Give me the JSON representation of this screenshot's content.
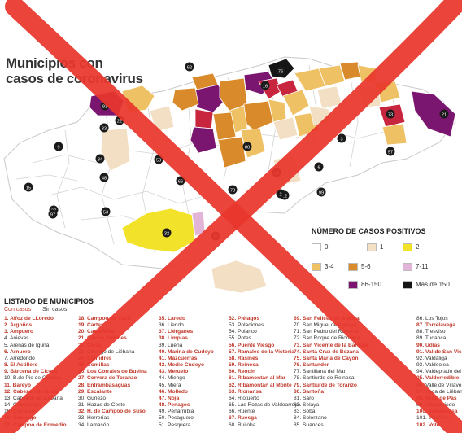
{
  "title_line1": "Municipios con",
  "title_line2": "casos de coronavirus",
  "legend": {
    "title": "NÚMERO DE CASOS POSITIVOS",
    "items": [
      {
        "label": "0",
        "color": "#ffffff"
      },
      {
        "label": "1",
        "color": "#f2dfc4"
      },
      {
        "label": "2",
        "color": "#f2e22a"
      },
      {
        "label": "3-4",
        "color": "#efc165"
      },
      {
        "label": "5-6",
        "color": "#d98a2b"
      },
      {
        "label": "7-11",
        "color": "#e2b4d8"
      },
      {
        "label": "86-150",
        "color": "#7b1670"
      },
      {
        "label": "Más de 150",
        "color": "#151515"
      }
    ]
  },
  "map": {
    "colors": {
      "base": "#ffffff",
      "one": "#f2dfc4",
      "two": "#f2e22a",
      "three": "#efc165",
      "five": "#d98a2b",
      "seven": "#e2b4d8",
      "twelve": "#c8263f",
      "eightysix": "#7b1670",
      "max": "#151515",
      "border": "#c9c9c9"
    },
    "labels": [
      "91",
      "33",
      "22",
      "76",
      "16",
      "21",
      "15",
      "9",
      "37",
      "62",
      "97",
      "64",
      "34",
      "48",
      "80",
      "53",
      "66",
      "99",
      "57",
      "12",
      "2",
      "58",
      "6",
      "3",
      "73",
      "32",
      "36",
      "78"
    ]
  },
  "list": {
    "title": "LISTADO DE MUNICIPIOS",
    "with_cases": "Con casos",
    "without_cases": "Sin casos",
    "columns": [
      [
        {
          "t": "1.  Alfoz de LLoredo",
          "p": true
        },
        {
          "t": "2.  Argoños",
          "p": true
        },
        {
          "t": "3.  Ampuero",
          "p": true
        },
        {
          "t": "4.  Anievas",
          "p": false
        },
        {
          "t": "5.  Arenas de Iguña",
          "p": false
        },
        {
          "t": "6.  Arnuero",
          "p": true
        },
        {
          "t": "7.  Arredondo",
          "p": false
        },
        {
          "t": "8.  El Astillero",
          "p": true
        },
        {
          "t": "9.  Bárcena de Cicero",
          "p": true
        },
        {
          "t": "10. B.de Pie de Concha",
          "p": false
        },
        {
          "t": "11. Bareyo",
          "p": true
        },
        {
          "t": "12. Cabezón de la Sal",
          "p": true
        },
        {
          "t": "13. Cabezón de Liébana",
          "p": false
        },
        {
          "t": "14. Cabuérniga",
          "p": false
        },
        {
          "t": "15. Camaleño",
          "p": false
        },
        {
          "t": "16. Camargo",
          "p": true
        },
        {
          "t": "17. Campoo de Enmedio",
          "p": true
        }
      ],
      [
        {
          "t": "18. Campoo de Yuso",
          "p": true
        },
        {
          "t": "19. Cartes",
          "p": true
        },
        {
          "t": "20. Castañeda",
          "p": true
        },
        {
          "t": "21. Castro Urdiales",
          "p": true
        },
        {
          "t": "22. Cieza",
          "p": true
        },
        {
          "t": "23. Cillorigo de Liébana",
          "p": false
        },
        {
          "t": "24. Colindres",
          "p": true
        },
        {
          "t": "25. Comillas",
          "p": true
        },
        {
          "t": "26. Los Corrales de Buelna",
          "p": true
        },
        {
          "t": "27. Corvera de Toranzo",
          "p": true
        },
        {
          "t": "28. Entrambasaguas",
          "p": true
        },
        {
          "t": "29. Escalante",
          "p": true
        },
        {
          "t": "30. Guriezo",
          "p": false
        },
        {
          "t": "31. Hazas de Cesto",
          "p": false
        },
        {
          "t": "32. H. de Campoo de Suso",
          "p": true
        },
        {
          "t": "33. Herrerías",
          "p": false
        },
        {
          "t": "34. Lamasón",
          "p": false
        }
      ],
      [
        {
          "t": "35. Laredo",
          "p": true
        },
        {
          "t": "36. Liendo",
          "p": false
        },
        {
          "t": "37. Liérganes",
          "p": true
        },
        {
          "t": "38. Limpias",
          "p": true
        },
        {
          "t": "39. Luena",
          "p": false
        },
        {
          "t": "40. Marina de Cudeyo",
          "p": true
        },
        {
          "t": "41. Mazcuerras",
          "p": true
        },
        {
          "t": "42. Medio Cudeyo",
          "p": true
        },
        {
          "t": "43. Meruelo",
          "p": true
        },
        {
          "t": "44. Miengo",
          "p": false
        },
        {
          "t": "45. Miera",
          "p": false
        },
        {
          "t": "46. Molledo",
          "p": true
        },
        {
          "t": "47. Noja",
          "p": true
        },
        {
          "t": "48. Penagos",
          "p": true
        },
        {
          "t": "49. Peñarrubia",
          "p": false
        },
        {
          "t": "50. Pesaguero",
          "p": false
        },
        {
          "t": "51. Pesquera",
          "p": false
        }
      ],
      [
        {
          "t": "52. Piélagos",
          "p": true
        },
        {
          "t": "53. Polaciones",
          "p": false
        },
        {
          "t": "54. Polanco",
          "p": false
        },
        {
          "t": "55. Potes",
          "p": false
        },
        {
          "t": "56. Puente Viesgo",
          "p": true
        },
        {
          "t": "57. Ramales de la Victoria",
          "p": true
        },
        {
          "t": "58. Rasines",
          "p": true
        },
        {
          "t": "59. Reinosa",
          "p": true
        },
        {
          "t": "60. Reocín",
          "p": true
        },
        {
          "t": "61. Ribamontán al Mar",
          "p": true
        },
        {
          "t": "62. Ribamontán al Monte",
          "p": true
        },
        {
          "t": "63. Rionansa",
          "p": true
        },
        {
          "t": "64. Riotuerto",
          "p": false
        },
        {
          "t": "65. Las Rozas de Valdearroyo",
          "p": false
        },
        {
          "t": "66. Ruente",
          "p": false
        },
        {
          "t": "67. Ruesga",
          "p": true
        },
        {
          "t": "68. Ruiloba",
          "p": false
        }
      ],
      [
        {
          "t": "69. San Felices de Buelna",
          "p": true
        },
        {
          "t": "70. San Miguel de Aguayo",
          "p": false
        },
        {
          "t": "71. San Pedro del Romeral",
          "p": false
        },
        {
          "t": "72. San Roque de Riomiera",
          "p": false
        },
        {
          "t": "73. San Vicente de la Barquera",
          "p": true
        },
        {
          "t": "74. Santa Cruz de Bezana",
          "p": true
        },
        {
          "t": "75. Santa María de Cayón",
          "p": true
        },
        {
          "t": "76. Santander",
          "p": true
        },
        {
          "t": "77. Santillana del Mar",
          "p": false
        },
        {
          "t": "78. Santiurde de Reinosa",
          "p": false
        },
        {
          "t": "79. Santiurde de Toranzo",
          "p": true
        },
        {
          "t": "80. Santoña",
          "p": true
        },
        {
          "t": "81. Saro",
          "p": false
        },
        {
          "t": "82. Selaya",
          "p": false
        },
        {
          "t": "83. Soba",
          "p": false
        },
        {
          "t": "84. Solórzano",
          "p": false
        },
        {
          "t": "85. Suances",
          "p": false
        }
      ],
      [
        {
          "t": "86. Los Tojos",
          "p": false
        },
        {
          "t": "87. Torrelavega",
          "p": true
        },
        {
          "t": "88. Tresviso",
          "p": false
        },
        {
          "t": "89. Tudanca",
          "p": false
        },
        {
          "t": "90. Udías",
          "p": true
        },
        {
          "t": "91. Val de San Vicente",
          "p": true
        },
        {
          "t": "92. Valdáliga",
          "p": false
        },
        {
          "t": "93. Valdeolea",
          "p": false
        },
        {
          "t": "94. Valdeprado del Río",
          "p": false
        },
        {
          "t": "95. Valderredible",
          "p": true
        },
        {
          "t": "96. Valle de Villaverde",
          "p": false
        },
        {
          "t": "97. Vega de Liébana",
          "p": false
        },
        {
          "t": "98. Vega de Pas",
          "p": true
        },
        {
          "t": "99. Villacarriedo",
          "p": false
        },
        {
          "t": "100. Villaescusa",
          "p": true
        },
        {
          "t": "101. Villafufre",
          "p": false
        },
        {
          "t": "102. Voto",
          "p": true
        }
      ]
    ]
  }
}
